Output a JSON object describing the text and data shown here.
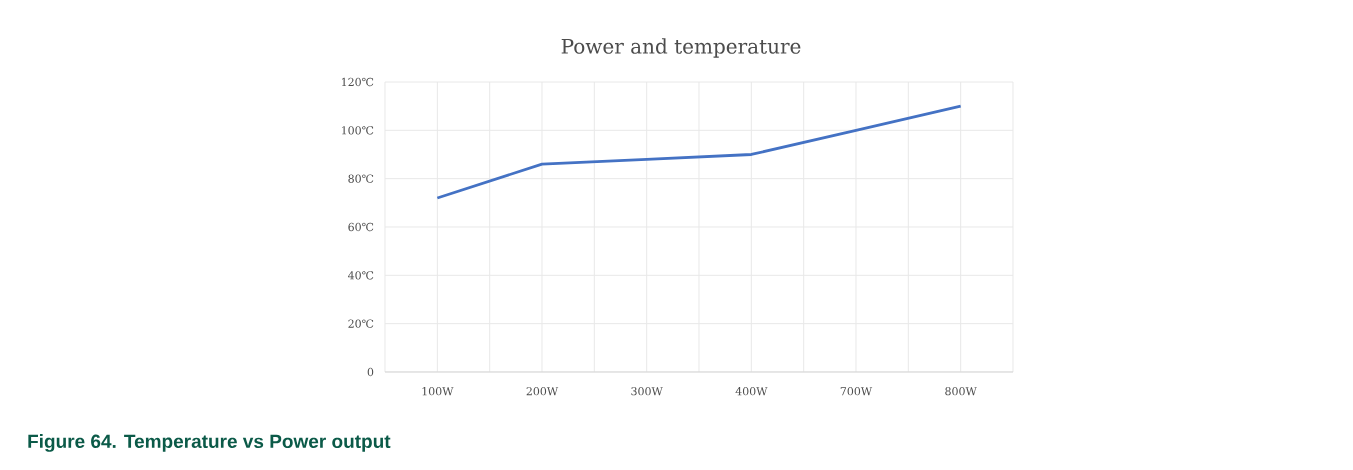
{
  "chart_data": {
    "type": "line",
    "title": "Power and temperature",
    "categories": [
      "100W",
      "200W",
      "300W",
      "400W",
      "700W",
      "800W"
    ],
    "values": [
      72,
      86,
      88,
      90,
      100,
      110
    ],
    "color": "#4472c4",
    "ylim": [
      0,
      120
    ],
    "yticks": [
      0,
      {
        "value": 20,
        "label": "20℃"
      },
      {
        "value": 40,
        "label": "40℃"
      },
      {
        "value": 60,
        "label": "60℃"
      },
      {
        "value": 80,
        "label": "80℃"
      },
      {
        "value": 100,
        "label": "100℃"
      },
      {
        "value": 120,
        "label": "120℃"
      }
    ],
    "grid": true,
    "marker": "none",
    "line_style": "solid",
    "annotations": [
      "Figure 64.  Temperature vs Power output"
    ]
  }
}
